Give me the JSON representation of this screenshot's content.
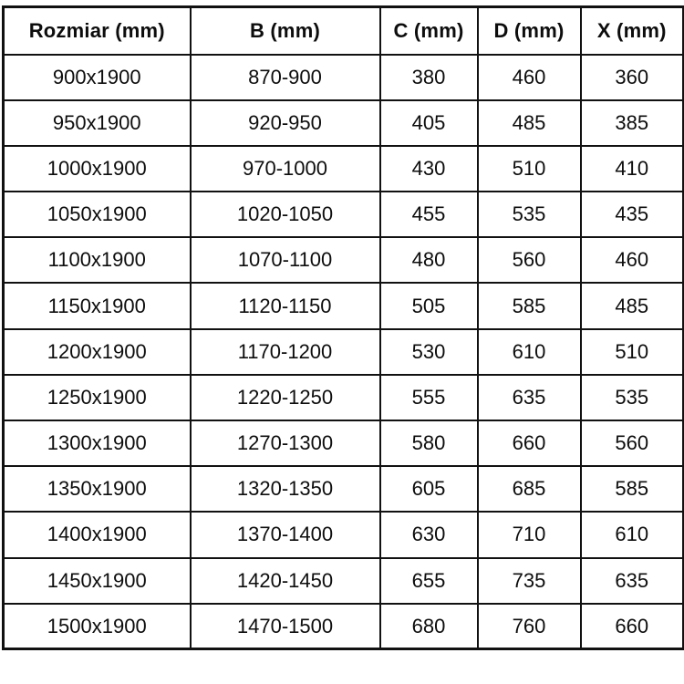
{
  "style": {
    "border_color": "#111111",
    "text_color": "#0d0d0d",
    "background": "#ffffff"
  },
  "chart_data": {
    "type": "table",
    "title": "",
    "columns": [
      "Rozmiar (mm)",
      "B (mm)",
      "C (mm)",
      "D (mm)",
      "X (mm)"
    ],
    "rows": [
      [
        "900x1900",
        "870-900",
        "380",
        "460",
        "360"
      ],
      [
        "950x1900",
        "920-950",
        "405",
        "485",
        "385"
      ],
      [
        "1000x1900",
        "970-1000",
        "430",
        "510",
        "410"
      ],
      [
        "1050x1900",
        "1020-1050",
        "455",
        "535",
        "435"
      ],
      [
        "1100x1900",
        "1070-1100",
        "480",
        "560",
        "460"
      ],
      [
        "1150x1900",
        "1120-1150",
        "505",
        "585",
        "485"
      ],
      [
        "1200x1900",
        "1170-1200",
        "530",
        "610",
        "510"
      ],
      [
        "1250x1900",
        "1220-1250",
        "555",
        "635",
        "535"
      ],
      [
        "1300x1900",
        "1270-1300",
        "580",
        "660",
        "560"
      ],
      [
        "1350x1900",
        "1320-1350",
        "605",
        "685",
        "585"
      ],
      [
        "1400x1900",
        "1370-1400",
        "630",
        "710",
        "610"
      ],
      [
        "1450x1900",
        "1420-1450",
        "655",
        "735",
        "635"
      ],
      [
        "1500x1900",
        "1470-1500",
        "680",
        "760",
        "660"
      ]
    ]
  }
}
